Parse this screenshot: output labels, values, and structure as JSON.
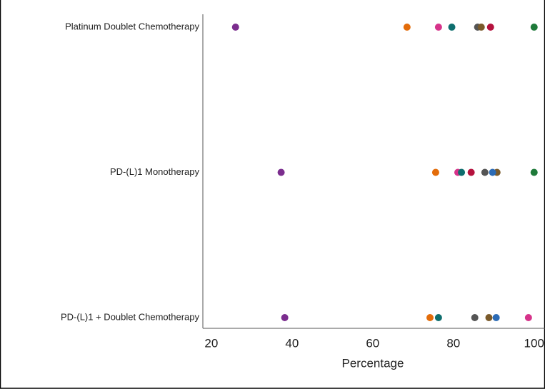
{
  "chart_data": {
    "type": "dot",
    "x_label": "Percentage",
    "categories": [
      "Platinum Doublet Chemotherapy",
      "PD-(L)1 Monotherapy",
      "PD-(L)1 + Doublet Chemotherapy"
    ],
    "series": [
      {
        "color": "#7b2d8e",
        "values": [
          26,
          37.3,
          38.2
        ]
      },
      {
        "color": "#e36c0a",
        "values": [
          68.5,
          75.6,
          74.2
        ]
      },
      {
        "color": "#d6338a",
        "values": [
          76.3,
          81.1,
          98.6
        ]
      },
      {
        "color": "#0e6e6e",
        "values": [
          79.6,
          82,
          76.3
        ]
      },
      {
        "color": "#555555",
        "values": [
          86,
          87.8,
          85.3
        ]
      },
      {
        "color": "#7a5a2a",
        "values": [
          86.9,
          90.8,
          88.8
        ]
      },
      {
        "color": "#b5123e",
        "values": [
          89.2,
          84.4,
          null
        ]
      },
      {
        "color": "#1f7a3a",
        "values": [
          100,
          100,
          null
        ]
      },
      {
        "color": "#2c6bb5",
        "values": [
          null,
          89.7,
          90.6
        ]
      }
    ],
    "xlim": [
      17.9,
      102.7
    ],
    "xticks": [
      20,
      40,
      60,
      80,
      100
    ]
  }
}
